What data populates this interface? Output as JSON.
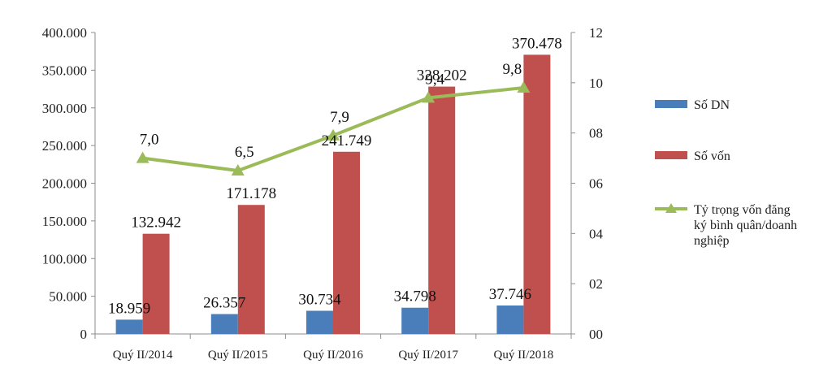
{
  "chart_data": {
    "type": "bar",
    "categories": [
      "Quý II/2014",
      "Quý II/2015",
      "Quý II/2016",
      "Quý II/2017",
      "Quý II/2018"
    ],
    "series": [
      {
        "name": "Số DN",
        "type": "bar",
        "axis": "left",
        "color": "#4a7ebb",
        "values": [
          18959,
          26357,
          30734,
          34798,
          37746
        ],
        "labels": [
          "18.959",
          "26.357",
          "30.734",
          "34.798",
          "37.746"
        ]
      },
      {
        "name": "Số vốn",
        "type": "bar",
        "axis": "left",
        "color": "#c0504d",
        "values": [
          132942,
          171178,
          241749,
          328202,
          370478
        ],
        "labels": [
          "132.942",
          "171.178",
          "241.749",
          "328.202",
          "370.478"
        ]
      },
      {
        "name": "Tỷ trọng vốn đăng ký bình quân/doanh nghiệp",
        "legend_lines": [
          "Tỷ trọng vốn đăng",
          "ký bình quân/doanh",
          "nghiệp"
        ],
        "type": "line",
        "axis": "right",
        "color": "#9bbb59",
        "marker": "triangle",
        "values": [
          7.0,
          6.5,
          7.9,
          9.4,
          9.8
        ],
        "labels": [
          "7,0",
          "6,5",
          "7,9",
          "9,4",
          "9,8"
        ]
      }
    ],
    "y_left": {
      "ylim": [
        0,
        400000
      ],
      "ticks": [
        0,
        50000,
        100000,
        150000,
        200000,
        250000,
        300000,
        350000,
        400000
      ],
      "tick_labels": [
        "0",
        "50.000",
        "100.000",
        "150.000",
        "200.000",
        "250.000",
        "300.000",
        "350.000",
        "400.000"
      ]
    },
    "y_right": {
      "ylim": [
        0,
        12
      ],
      "ticks": [
        0,
        2,
        4,
        6,
        8,
        10,
        12
      ],
      "tick_labels": [
        "00",
        "02",
        "04",
        "06",
        "08",
        "10",
        "12"
      ]
    },
    "legend_position": "right",
    "grid": false
  }
}
